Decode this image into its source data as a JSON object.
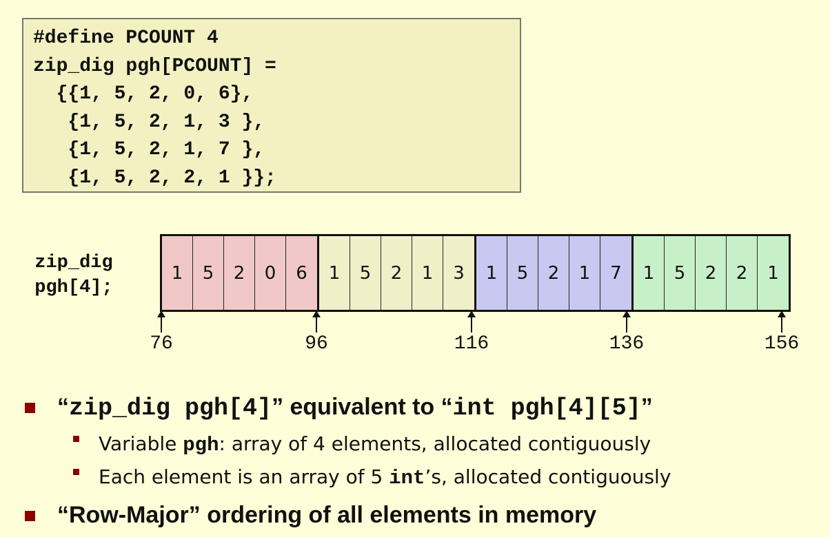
{
  "code": {
    "lines": [
      "#define PCOUNT 4",
      "zip_dig pgh[PCOUNT] =",
      "  {{1, 5, 2, 0, 6},",
      "   {1, 5, 2, 1, 3 },",
      "   {1, 5, 2, 1, 7 },",
      "   {1, 5, 2, 2, 1 }};"
    ]
  },
  "diagram": {
    "label_line1": "zip_dig",
    "label_line2": "pgh[4];",
    "rows": [
      {
        "color": "#f0c8c8",
        "values": [
          "1",
          "5",
          "2",
          "0",
          "6"
        ]
      },
      {
        "color": "#f0f0c8",
        "values": [
          "1",
          "5",
          "2",
          "1",
          "3"
        ]
      },
      {
        "color": "#c8c8f0",
        "values": [
          "1",
          "5",
          "2",
          "1",
          "7"
        ]
      },
      {
        "color": "#c8f0c8",
        "values": [
          "1",
          "5",
          "2",
          "2",
          "1"
        ]
      }
    ],
    "addresses": [
      "76",
      "96",
      "116",
      "136",
      "156"
    ]
  },
  "bullets": {
    "b1": {
      "q1": "“",
      "code1": "zip_dig pgh[4]",
      "mid": "” equivalent to “",
      "code2": "int pgh[4][5]",
      "q2": "”"
    },
    "b1_sub1": {
      "pre": "Variable ",
      "code": "pgh",
      "post": ": array of 4 elements, allocated contiguously"
    },
    "b1_sub2": {
      "pre": "Each element is an array of 5 ",
      "code": "int",
      "post": "’s, allocated contiguously"
    },
    "b2": {
      "text": "“Row-Major” ordering of all elements in memory"
    }
  },
  "colors": {
    "bullet": "#8b0000",
    "background": "#fefed8",
    "code_box": "#f3f1c2"
  }
}
